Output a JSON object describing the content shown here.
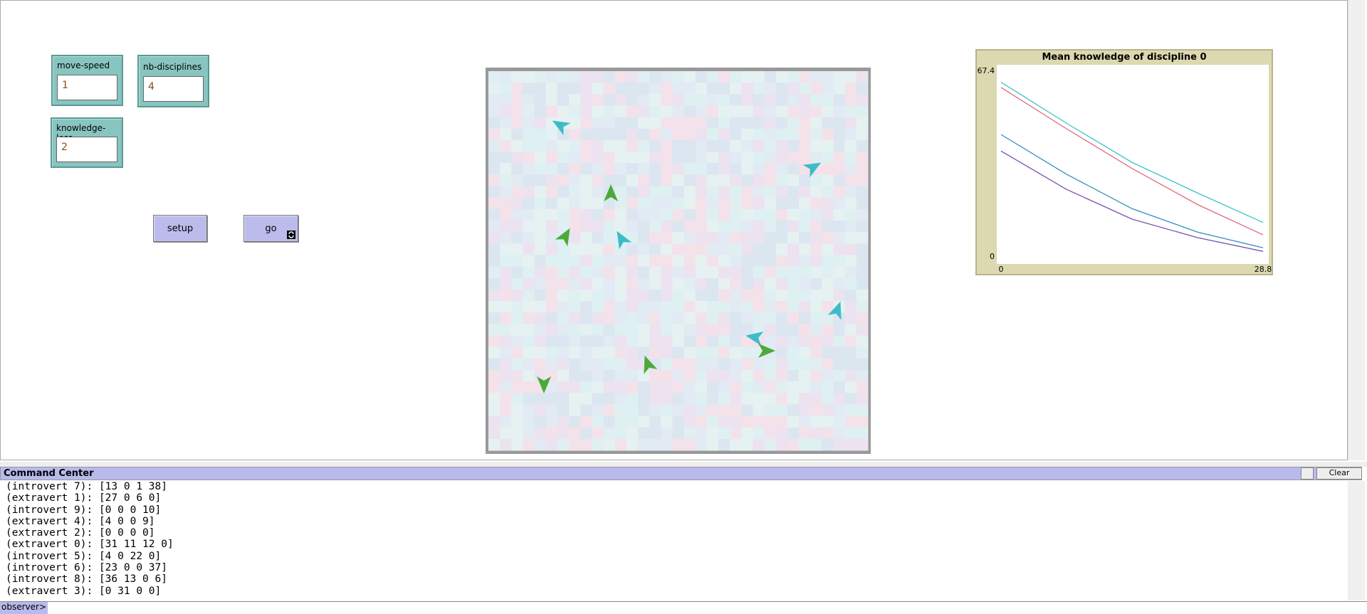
{
  "inputs": [
    {
      "label": "move-speed",
      "value": 1
    },
    {
      "label": "nb-disciplines",
      "value": 4
    },
    {
      "label": "knowledge-loss",
      "value": 2
    }
  ],
  "buttons": [
    "setup",
    "go"
  ],
  "plot": {
    "title": "Mean knowledge of discipline 0",
    "xlim": [
      0,
      28.8
    ],
    "ylim": [
      0,
      67.4
    ],
    "x": [
      0,
      7.2,
      14.4,
      21.6,
      28.8
    ],
    "series": [
      {
        "color": "#3cc4c4",
        "values": [
          63.9,
          49,
          34.8,
          23.7,
          13.0
        ]
      },
      {
        "color": "#e06a7a",
        "values": [
          62.0,
          47,
          32.6,
          19.5,
          8.5
        ]
      },
      {
        "color": "#2f8fc0",
        "values": [
          44.9,
          30.5,
          18.0,
          9.5,
          3.8
        ]
      },
      {
        "color": "#7a4fb0",
        "values": [
          38.9,
          25,
          14.2,
          7.5,
          2.5
        ]
      }
    ]
  },
  "command_center": {
    "title": "Command Center",
    "clear": "Clear",
    "prompt": "observer>",
    "lines": [
      "(introvert 7): [13 0 1 38]",
      "(extravert 1): [27 0 6 0]",
      "(introvert 9): [0 0 0 10]",
      "(extravert 4): [4 0 0 9]",
      "(extravert 2): [0 0 0 0]",
      "(extravert 0): [31 11 12 0]",
      "(introvert 5): [4 0 22 0]",
      "(introvert 6): [23 0 0 37]",
      "(introvert 8): [36 13 0 6]",
      "(extravert 3): [0 31 0 0]"
    ]
  }
}
